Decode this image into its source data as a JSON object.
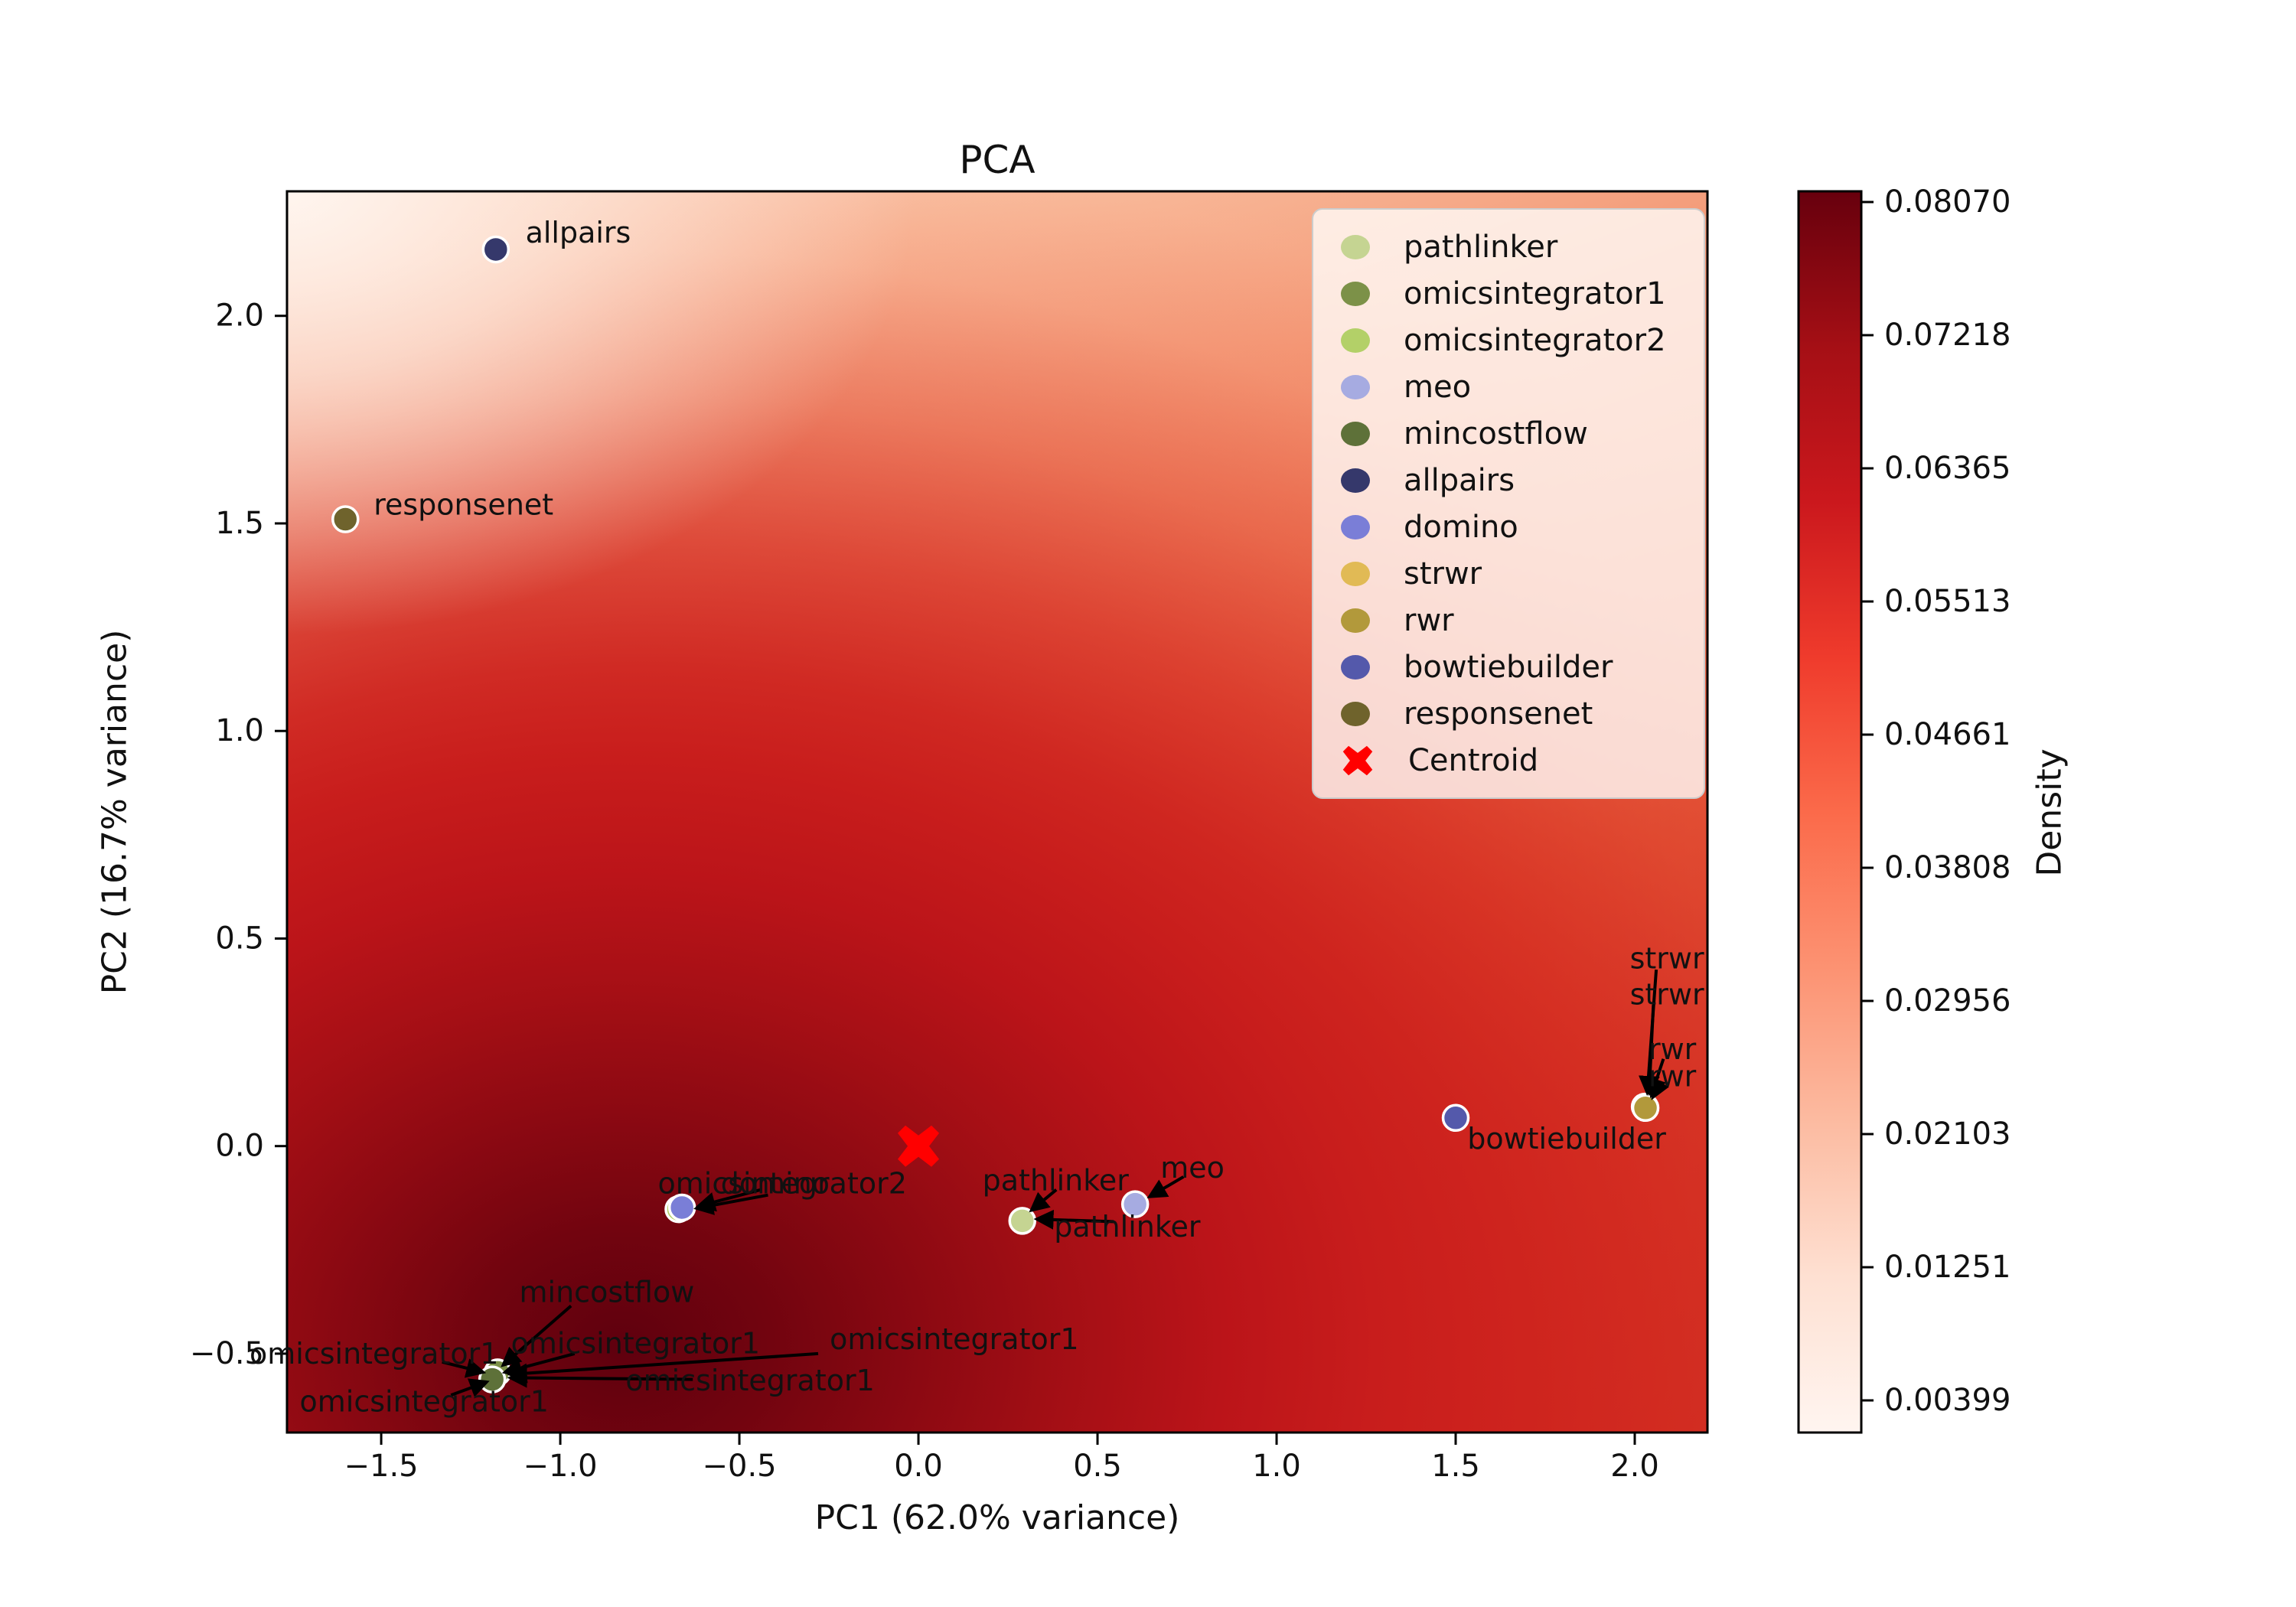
{
  "chart_data": {
    "type": "scatter",
    "title": "PCA",
    "xlabel": "PC1 (62.0% variance)",
    "ylabel": "PC2 (16.7% variance)",
    "background": "kde-density-heatmap-reds",
    "xlim": [
      -1.763,
      2.203
    ],
    "ylim": [
      -0.69,
      2.3
    ],
    "x_ticks": [
      "−1.5",
      "−1.0",
      "−0.5",
      "0.0",
      "0.5",
      "1.0",
      "1.5",
      "2.0"
    ],
    "x_tick_values": [
      -1.5,
      -1.0,
      -0.5,
      0.0,
      0.5,
      1.0,
      1.5,
      2.0
    ],
    "y_ticks": [
      "−0.5",
      "0.0",
      "0.5",
      "1.0",
      "1.5",
      "2.0"
    ],
    "y_tick_values": [
      -0.5,
      0.0,
      0.5,
      1.0,
      1.5,
      2.0
    ],
    "grid": false,
    "legend_position": "upper right",
    "colorbar": {
      "label": "Density",
      "ticks": [
        "0.08070",
        "0.07218",
        "0.06365",
        "0.05513",
        "0.04661",
        "0.03808",
        "0.02956",
        "0.02103",
        "0.01251",
        "0.00399"
      ]
    },
    "series": [
      {
        "name": "pathlinker",
        "color": "#c5d492",
        "points": [
          [
            0.29,
            -0.18
          ]
        ]
      },
      {
        "name": "omicsintegrator1",
        "color": "#7c9148",
        "points": [
          [
            -1.175,
            -0.545
          ]
        ]
      },
      {
        "name": "omicsintegrator2",
        "color": "#b3d068",
        "points": [
          [
            -0.67,
            -0.152
          ]
        ]
      },
      {
        "name": "meo",
        "color": "#a6abe1",
        "points": [
          [
            0.605,
            -0.14
          ]
        ]
      },
      {
        "name": "mincostflow",
        "color": "#5e7139",
        "points": [
          [
            -1.19,
            -0.562
          ]
        ]
      },
      {
        "name": "allpairs",
        "color": "#35386b",
        "points": [
          [
            -1.18,
            2.16
          ]
        ]
      },
      {
        "name": "domino",
        "color": "#7a7ed7",
        "points": [
          [
            -0.66,
            -0.148
          ]
        ]
      },
      {
        "name": "strwr",
        "color": "#e1ba55",
        "points": [
          [
            2.028,
            0.095
          ]
        ]
      },
      {
        "name": "rwr",
        "color": "#b2993b",
        "points": [
          [
            2.03,
            0.092
          ]
        ]
      },
      {
        "name": "bowtiebuilder",
        "color": "#5459ab",
        "points": [
          [
            1.5,
            0.068
          ]
        ]
      },
      {
        "name": "responsenet",
        "color": "#6f632c",
        "points": [
          [
            -1.6,
            1.51
          ]
        ]
      }
    ],
    "centroid": {
      "label": "Centroid",
      "x": 0.0,
      "y": 0.0,
      "color": "#ff0000"
    },
    "legend": [
      "pathlinker",
      "omicsintegrator1",
      "omicsintegrator2",
      "meo",
      "mincostflow",
      "allpairs",
      "domino",
      "strwr",
      "rwr",
      "bowtiebuilder",
      "responsenet",
      "Centroid"
    ],
    "annotations": [
      {
        "text": "allpairs",
        "lx": -0.95,
        "ly": 2.2
      },
      {
        "text": "responsenet",
        "lx": -1.27,
        "ly": 1.545
      },
      {
        "text": "bowtiebuilder",
        "lx": 1.81,
        "ly": 0.018
      },
      {
        "text": "omicsintegrator2",
        "lx": -0.38,
        "ly": -0.09,
        "from": [
          -0.44,
          -0.105
        ],
        "to": [
          -0.615,
          -0.145
        ]
      },
      {
        "text": "domino",
        "lx": -0.4,
        "ly": -0.09,
        "from": [
          -0.42,
          -0.118
        ],
        "to": [
          -0.62,
          -0.15
        ]
      },
      {
        "text": "pathlinker",
        "lx": 0.383,
        "ly": -0.083,
        "from": [
          0.385,
          -0.105
        ],
        "to": [
          0.315,
          -0.155
        ]
      },
      {
        "text": "pathlinker",
        "lx": 0.583,
        "ly": -0.194,
        "from": [
          0.545,
          -0.182
        ],
        "to": [
          0.33,
          -0.176
        ]
      },
      {
        "text": "meo",
        "lx": 0.765,
        "ly": -0.052,
        "from": [
          0.74,
          -0.074
        ],
        "to": [
          0.645,
          -0.122
        ]
      },
      {
        "text": "strwr",
        "lx": 2.09,
        "ly": 0.452,
        "from": [
          2.06,
          0.425
        ],
        "to": [
          2.035,
          0.128
        ]
      },
      {
        "text": "strwr",
        "lx": 2.09,
        "ly": 0.365,
        "from": [
          2.052,
          0.34
        ],
        "to": [
          2.04,
          0.128
        ]
      },
      {
        "text": "rwr",
        "lx": 2.105,
        "ly": 0.234,
        "from": [
          2.08,
          0.21
        ],
        "to": [
          2.046,
          0.122
        ]
      },
      {
        "text": "rwr",
        "lx": 2.105,
        "ly": 0.168,
        "from": [
          2.068,
          0.148
        ],
        "to": [
          2.05,
          0.117
        ]
      },
      {
        "text": "mincostflow",
        "lx": -0.87,
        "ly": -0.352,
        "from": [
          -0.97,
          -0.385
        ],
        "to": [
          -1.16,
          -0.528
        ]
      },
      {
        "text": "omicsintegrator1",
        "lx": -1.52,
        "ly": -0.5,
        "from": [
          -1.33,
          -0.52
        ],
        "to": [
          -1.215,
          -0.545
        ]
      },
      {
        "text": "omicsintegrator1",
        "lx": -0.79,
        "ly": -0.475,
        "from": [
          -0.96,
          -0.5
        ],
        "to": [
          -1.155,
          -0.545
        ]
      },
      {
        "text": "omicsintegrator1",
        "lx": 0.1,
        "ly": -0.465,
        "from": [
          -0.28,
          -0.5
        ],
        "to": [
          -1.14,
          -0.55
        ]
      },
      {
        "text": "omicsintegrator1",
        "lx": -0.47,
        "ly": -0.565,
        "from": [
          -0.63,
          -0.562
        ],
        "to": [
          -1.14,
          -0.558
        ]
      },
      {
        "text": "omicsintegrator1",
        "lx": -1.38,
        "ly": -0.615,
        "from": [
          -1.305,
          -0.6
        ],
        "to": [
          -1.205,
          -0.568
        ]
      }
    ]
  }
}
